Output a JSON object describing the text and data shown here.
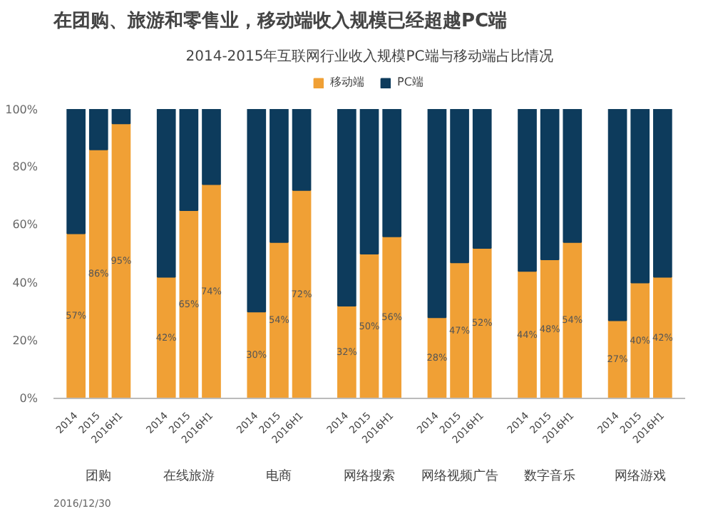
{
  "chart_data": {
    "type": "bar",
    "stacked": true,
    "title": "在团购、旅游和零售业，移动端收入规模已经超越PC端",
    "subtitle": "2014-2015年互联网行业收入规模PC端与移动端占比情况",
    "categories": [
      "2014",
      "2015",
      "2016H1",
      "2014",
      "2015",
      "2016H1",
      "2014",
      "2015",
      "2016H1",
      "2014",
      "2015",
      "2016H1",
      "2014",
      "2015",
      "2016H1",
      "2014",
      "2015",
      "2016H1",
      "2014",
      "2015",
      "2016H1"
    ],
    "series": [
      {
        "name": "移动端",
        "color": "#f0a035",
        "values": [
          57,
          86,
          95,
          42,
          65,
          74,
          30,
          54,
          72,
          32,
          50,
          56,
          28,
          47,
          52,
          44,
          48,
          54,
          27,
          40,
          42
        ],
        "value_labels": [
          "57%",
          "86%",
          "95%",
          "42%",
          "65%",
          "74%",
          "30%",
          "54%",
          "72%",
          "32%",
          "50%",
          "56%",
          "28%",
          "47%",
          "52%",
          "44%",
          "48%",
          "54%",
          "27%",
          "40%",
          "42%"
        ]
      },
      {
        "name": "PC端",
        "color": "#0d3b5c",
        "values": [
          43,
          14,
          5,
          58,
          35,
          26,
          70,
          46,
          28,
          68,
          50,
          44,
          72,
          53,
          48,
          56,
          52,
          46,
          73,
          60,
          58
        ]
      }
    ],
    "annotations": [
      "团购",
      "在线旅游",
      "电商",
      "网络搜索",
      "网络视频广告",
      "数字音乐",
      "网络游戏",
      "2016/12/30"
    ],
    "ylim": [
      0,
      100
    ],
    "yticks": [
      {
        "value": 0,
        "label": "0%"
      },
      {
        "value": 20,
        "label": "20%"
      },
      {
        "value": 40,
        "label": "40%"
      },
      {
        "value": 60,
        "label": "60%"
      },
      {
        "value": 80,
        "label": "80%"
      },
      {
        "value": 100,
        "label": "100%"
      }
    ],
    "legend": "top"
  }
}
